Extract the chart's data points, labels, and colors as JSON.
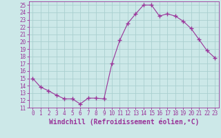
{
  "x_values": [
    0,
    1,
    2,
    3,
    4,
    5,
    6,
    7,
    8,
    9,
    10,
    11,
    12,
    13,
    14,
    15,
    16,
    17,
    18,
    19,
    20,
    21,
    22,
    23
  ],
  "y_values": [
    15.0,
    13.8,
    13.3,
    12.7,
    12.2,
    12.2,
    11.5,
    12.3,
    12.3,
    12.2,
    17.0,
    20.2,
    22.5,
    23.8,
    25.0,
    25.0,
    23.5,
    23.8,
    23.5,
    22.8,
    21.8,
    20.3,
    18.8,
    17.8
  ],
  "line_color": "#993399",
  "marker": "+",
  "marker_size": 4,
  "bg_color": "#cce8e8",
  "grid_color": "#aacfcf",
  "xlabel": "Windchill (Refroidissement éolien,°C)",
  "xlim": [
    -0.5,
    23.5
  ],
  "ylim": [
    11,
    25.5
  ],
  "yticks": [
    11,
    12,
    13,
    14,
    15,
    16,
    17,
    18,
    19,
    20,
    21,
    22,
    23,
    24,
    25
  ],
  "xticks": [
    0,
    1,
    2,
    3,
    4,
    5,
    6,
    7,
    8,
    9,
    10,
    11,
    12,
    13,
    14,
    15,
    16,
    17,
    18,
    19,
    20,
    21,
    22,
    23
  ],
  "font_color": "#993399",
  "tick_fontsize": 5.5,
  "label_fontsize": 7.0,
  "spine_color": "#993399",
  "linewidth": 0.8,
  "marker_linewidth": 1.0
}
